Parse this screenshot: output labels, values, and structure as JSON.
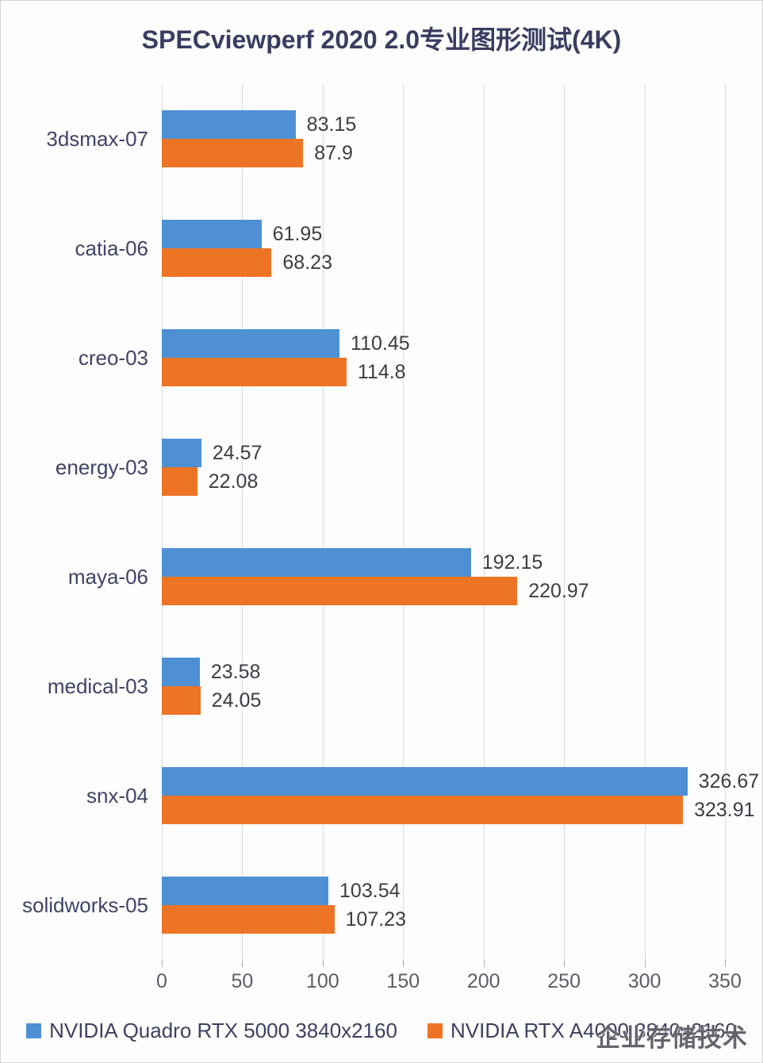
{
  "title": "SPECviewperf 2020 2.0专业图形测试(4K)",
  "watermark": "企业存储技术",
  "chart_data": {
    "type": "bar",
    "orientation": "horizontal",
    "title": "SPECviewperf 2020 2.0专业图形测试(4K)",
    "xlabel": "",
    "ylabel": "",
    "xlim": [
      0,
      350
    ],
    "x_ticks": [
      0,
      50,
      100,
      150,
      200,
      250,
      300,
      350
    ],
    "grid": true,
    "legend_position": "bottom",
    "categories": [
      "3dsmax-07",
      "catia-06",
      "creo-03",
      "energy-03",
      "maya-06",
      "medical-03",
      "snx-04",
      "solidworks-05"
    ],
    "series": [
      {
        "name": "NVIDIA Quadro RTX 5000 3840x2160",
        "color": "#4E90D3",
        "values": [
          83.15,
          61.95,
          110.45,
          24.57,
          192.15,
          23.58,
          326.67,
          103.54
        ]
      },
      {
        "name": "NVIDIA RTX A4000 3840x2160",
        "color": "#ED7425",
        "values": [
          87.9,
          68.23,
          114.8,
          22.08,
          220.97,
          24.05,
          323.91,
          107.23
        ]
      }
    ]
  }
}
